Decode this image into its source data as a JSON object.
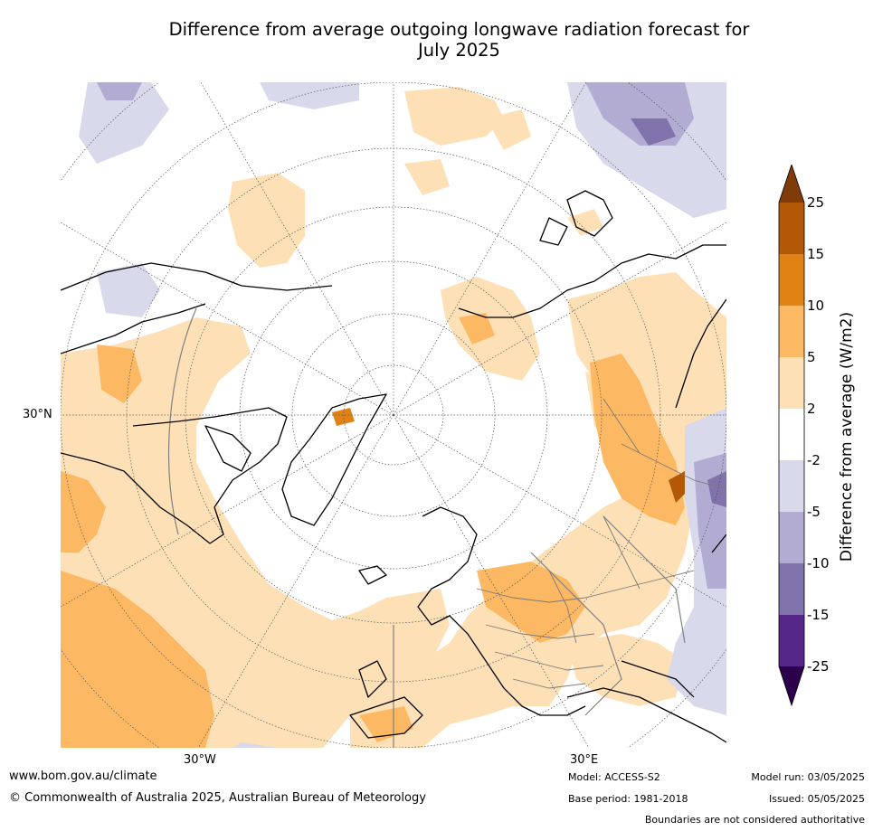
{
  "title": {
    "line1": "Difference from average outgoing longwave radiation forecast for",
    "line2": "July 2025"
  },
  "map": {
    "labels": {
      "lat_30n": "30°N",
      "lon_30w": "30°W",
      "lon_30e": "30°E"
    },
    "projection": "north-polar-stereographic"
  },
  "legend": {
    "label": "Difference from average (W/m2)",
    "ticks": [
      "25",
      "15",
      "10",
      "5",
      "2",
      "-2",
      "-5",
      "-10",
      "-15",
      "-25"
    ],
    "bins": [
      {
        "range": ">25",
        "color": "#7f3b08"
      },
      {
        "range": "15 to 25",
        "color": "#b35806"
      },
      {
        "range": "10 to 15",
        "color": "#e08214"
      },
      {
        "range": "5 to 10",
        "color": "#fdb863"
      },
      {
        "range": "2 to 5",
        "color": "#fee0b6"
      },
      {
        "range": "-2 to 2",
        "color": "#ffffff"
      },
      {
        "range": "-5 to -2",
        "color": "#d8daeb"
      },
      {
        "range": "-10 to -5",
        "color": "#b2abd2"
      },
      {
        "range": "-15 to -10",
        "color": "#8073ac"
      },
      {
        "range": "-25 to -15",
        "color": "#542788"
      },
      {
        "range": "<-25",
        "color": "#2d004b"
      }
    ]
  },
  "footer": {
    "url": "www.bom.gov.au/climate",
    "copyright": "© Commonwealth of Australia 2025, Australian Bureau of Meteorology",
    "model": "Model: ACCESS-S2",
    "base_period": "Base period: 1981-2018",
    "model_run": "Model run: 03/05/2025",
    "issued": "Issued: 05/05/2025",
    "disclaimer": "Boundaries are not considered authoritative"
  }
}
